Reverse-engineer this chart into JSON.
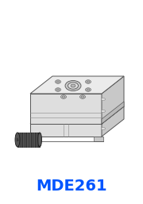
{
  "title_label": "MDE261",
  "title_color": "#0055FF",
  "title_fontsize": 14,
  "bg_color": "#FFFFFF",
  "line_color": "#888888",
  "line_color_dark": "#555555",
  "fill_light": "#F2F2F2",
  "fill_mid": "#DEDEDE",
  "fill_dark": "#C8C8C8",
  "fill_darker": "#B8B8B8",
  "fill_top": "#EBEBEB",
  "knob_fill": "#3A3A3A",
  "knob_dark": "#1A1A1A",
  "fig_width": 1.8,
  "fig_height": 2.57,
  "dpi": 100
}
